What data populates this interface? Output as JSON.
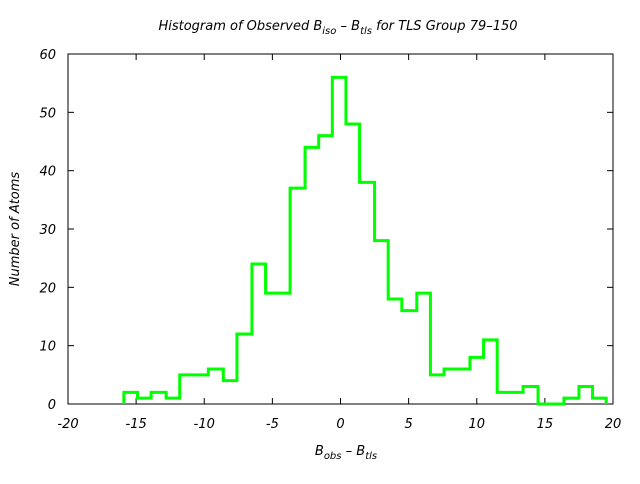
{
  "chart_data": {
    "type": "histogram",
    "title": {
      "prefix": "Histogram of Observed B",
      "sub1": "iso",
      "middle": " – B",
      "sub2": "tls",
      "suffix": "  for TLS Group 79–150"
    },
    "xlabel": {
      "main1": "B",
      "sub1": "obs",
      "main2": "  – B",
      "sub2": "tls"
    },
    "ylabel": "Number of Atoms",
    "xlim": [
      -20,
      20
    ],
    "ylim": [
      0,
      60
    ],
    "xticks": [
      -20,
      -15,
      -10,
      -5,
      0,
      5,
      10,
      15,
      20
    ],
    "xtick_labels": [
      "-20",
      "-15",
      "-10",
      "-5",
      "0",
      "5",
      "10",
      "15",
      "20"
    ],
    "yticks": [
      0,
      10,
      20,
      30,
      40,
      50,
      60
    ],
    "ytick_labels": [
      "0",
      "10",
      "20",
      "30",
      "40",
      "50",
      "60"
    ],
    "line_color": "#00ff00",
    "bins": [
      {
        "x0": -15.9,
        "x1": -14.9,
        "count": 2
      },
      {
        "x0": -14.9,
        "x1": -13.9,
        "count": 1
      },
      {
        "x0": -13.9,
        "x1": -12.8,
        "count": 2
      },
      {
        "x0": -12.8,
        "x1": -11.8,
        "count": 1
      },
      {
        "x0": -11.8,
        "x1": -9.7,
        "count": 5
      },
      {
        "x0": -9.7,
        "x1": -8.6,
        "count": 6
      },
      {
        "x0": -8.6,
        "x1": -7.6,
        "count": 4
      },
      {
        "x0": -7.6,
        "x1": -6.5,
        "count": 12
      },
      {
        "x0": -6.5,
        "x1": -5.5,
        "count": 24
      },
      {
        "x0": -5.5,
        "x1": -3.7,
        "count": 19
      },
      {
        "x0": -3.7,
        "x1": -2.6,
        "count": 37
      },
      {
        "x0": -2.6,
        "x1": -1.6,
        "count": 44
      },
      {
        "x0": -1.6,
        "x1": -0.6,
        "count": 46
      },
      {
        "x0": -0.6,
        "x1": 0.4,
        "count": 56
      },
      {
        "x0": 0.4,
        "x1": 1.4,
        "count": 48
      },
      {
        "x0": 1.4,
        "x1": 2.5,
        "count": 38
      },
      {
        "x0": 2.5,
        "x1": 3.5,
        "count": 28
      },
      {
        "x0": 3.5,
        "x1": 4.5,
        "count": 18
      },
      {
        "x0": 4.5,
        "x1": 5.6,
        "count": 16
      },
      {
        "x0": 5.6,
        "x1": 6.6,
        "count": 19
      },
      {
        "x0": 6.6,
        "x1": 7.6,
        "count": 5
      },
      {
        "x0": 7.6,
        "x1": 9.5,
        "count": 6
      },
      {
        "x0": 9.5,
        "x1": 10.5,
        "count": 8
      },
      {
        "x0": 10.5,
        "x1": 11.5,
        "count": 11
      },
      {
        "x0": 11.5,
        "x1": 13.4,
        "count": 2
      },
      {
        "x0": 13.4,
        "x1": 14.5,
        "count": 3
      },
      {
        "x0": 14.5,
        "x1": 16.4,
        "count": 0
      },
      {
        "x0": 16.4,
        "x1": 17.5,
        "count": 1
      },
      {
        "x0": 17.5,
        "x1": 18.5,
        "count": 3
      },
      {
        "x0": 18.5,
        "x1": 19.5,
        "count": 1
      }
    ],
    "grid": false,
    "legend": "none"
  }
}
